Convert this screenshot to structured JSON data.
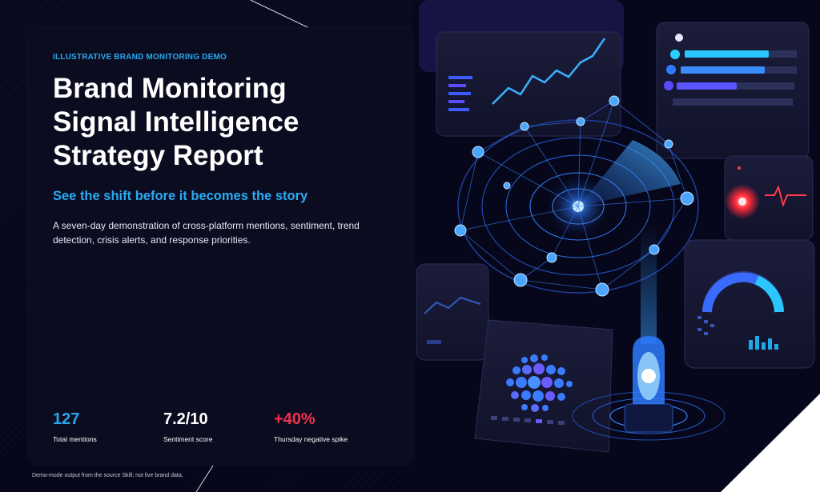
{
  "eyebrow": "ILLUSTRATIVE BRAND MONITORING DEMO",
  "title_lines": [
    "Brand Monitoring",
    "Signal Intelligence",
    "Strategy Report"
  ],
  "tagline": "See the shift before it becomes the story",
  "description": "A seven-day demonstration of cross-platform mentions, sentiment, trend detection, crisis alerts, and response priorities.",
  "stats": [
    {
      "value": "127",
      "label": "Total mentions",
      "color": "#28a6ee"
    },
    {
      "value": "7.2/10",
      "label": "Sentiment score",
      "color": "#ffffff"
    },
    {
      "value": "+40%",
      "label": "Thursday negative spike",
      "color": "#f0304e"
    }
  ],
  "footnote": "Demo-mode output from the source Skill; not live brand data.",
  "illustration": {
    "description_icons": [
      "radar-icon",
      "line-chart-icon",
      "bar-list-icon",
      "heartbeat-alert-icon",
      "gauge-icon",
      "bubble-grid-icon",
      "beacon-icon"
    ],
    "accent": "#2f7bff",
    "alert": "#ff2a3a"
  }
}
